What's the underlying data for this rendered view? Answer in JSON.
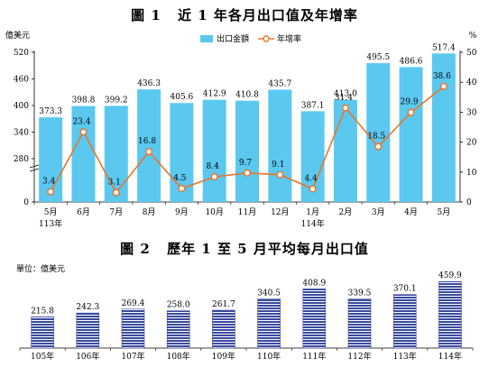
{
  "figure1": {
    "fig_no": "圖 1",
    "fig_title": "近 1 年各月出口值及年增率",
    "left_unit": "億美元",
    "right_unit": "%",
    "colors": {
      "bar": "#5bc8f0",
      "line": "#e8762b",
      "marker_fill": "#ffffff"
    }
  },
  "figure2": {
    "fig_no": "圖 2",
    "fig_title": "歷年 1 至 5 月平均每月出口值",
    "unit_label": "單位：億美元",
    "colors": {
      "bar_stripe": "#3a4a9c",
      "bar_gap": "#ffffff"
    }
  },
  "chart_data": [
    {
      "type": "bar",
      "categories": [
        "5月",
        "6月",
        "7月",
        "8月",
        "9月",
        "10月",
        "11月",
        "12月",
        "1月",
        "2月",
        "3月",
        "4月",
        "5月"
      ],
      "category_sublabels": [
        "113年",
        "",
        "",
        "",
        "",
        "",
        "",
        "",
        "114年",
        "",
        "",
        "",
        ""
      ],
      "series": [
        {
          "name": "出口金額",
          "type": "bar",
          "axis": "left",
          "values": [
            373.3,
            398.8,
            399.2,
            436.3,
            405.6,
            412.9,
            410.8,
            435.7,
            387.1,
            413.0,
            495.5,
            486.6,
            517.4
          ]
        },
        {
          "name": "年增率",
          "type": "line",
          "axis": "right",
          "values": [
            3.4,
            23.4,
            3.1,
            16.8,
            4.5,
            8.4,
            9.7,
            9.1,
            4.4,
            31.4,
            18.5,
            29.9,
            38.6
          ]
        }
      ],
      "value_labels_bar": [
        "373.3",
        "398.8",
        "399.2",
        "436.3",
        "405.6",
        "412.9",
        "410.8",
        "435.7",
        "387.1",
        "413.0",
        "495.5",
        "486.6",
        "517.4"
      ],
      "value_labels_line": [
        "3.4",
        "23.4",
        "3.1",
        "16.8",
        "4.5",
        "8.4",
        "9.7",
        "9.1",
        "4.4",
        "31.4",
        "18.5",
        "29.9",
        "38.6"
      ],
      "y_left_ticks": [
        "520",
        "460",
        "400",
        "340",
        "280",
        "0"
      ],
      "y_left_range": [
        0,
        520
      ],
      "y_left_break": true,
      "y_right_ticks": [
        "50",
        "40",
        "30",
        "20",
        "10",
        "0"
      ],
      "y_right_range": [
        0,
        50
      ],
      "legend": [
        "出口金額",
        "年增率"
      ],
      "legend_position": "top-right",
      "grid": false
    },
    {
      "type": "bar",
      "categories": [
        "105年",
        "106年",
        "107年",
        "108年",
        "109年",
        "110年",
        "111年",
        "112年",
        "113年",
        "114年"
      ],
      "values": [
        215.8,
        242.3,
        269.4,
        258.0,
        261.7,
        340.5,
        408.9,
        339.5,
        370.1,
        459.9
      ],
      "value_labels": [
        "215.8",
        "242.3",
        "269.4",
        "258.0",
        "261.7",
        "340.5",
        "408.9",
        "339.5",
        "370.1",
        "459.9"
      ],
      "ylim": [
        0,
        480
      ],
      "grid": false,
      "legend": []
    }
  ]
}
